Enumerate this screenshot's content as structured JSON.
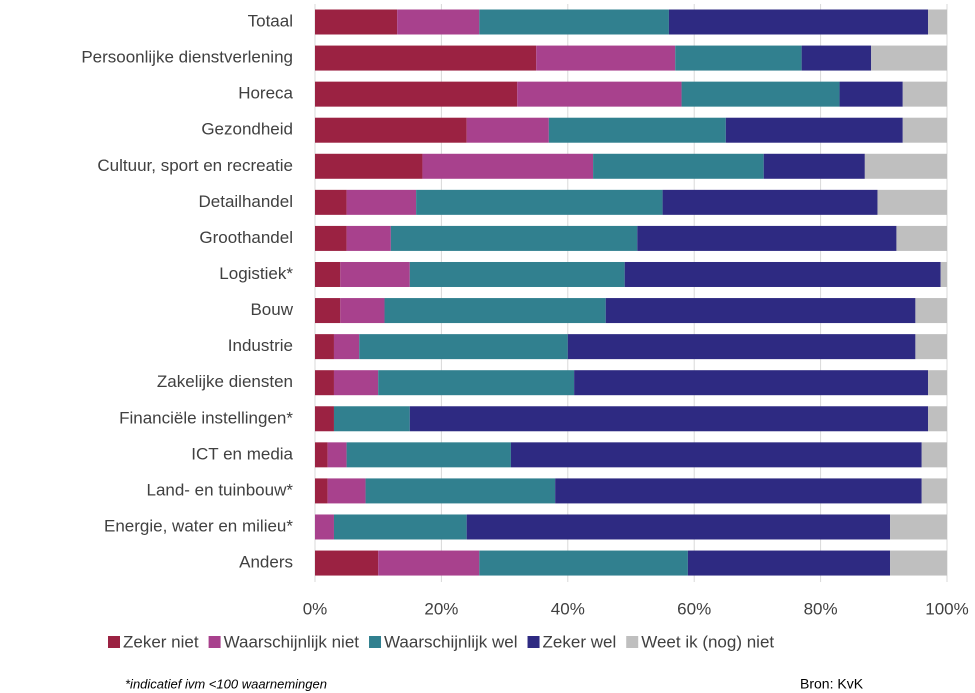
{
  "chart_data": {
    "type": "stacked_barh",
    "categories": [
      "Totaal",
      "Persoonlijke dienstverlening",
      "Horeca",
      "Gezondheid",
      "Cultuur, sport en recreatie",
      "Detailhandel",
      "Groothandel",
      "Logistiek*",
      "Bouw",
      "Industrie",
      "Zakelijke diensten",
      "Financiële instellingen*",
      "ICT en media",
      "Land- en tuinbouw*",
      "Energie, water en milieu*",
      "Anders"
    ],
    "series": [
      {
        "name": "Zeker niet",
        "color": "#9b2242",
        "values": [
          13,
          35,
          32,
          24,
          17,
          5,
          5,
          4,
          4,
          3,
          3,
          3,
          2,
          2,
          0,
          10
        ]
      },
      {
        "name": "Waarschijnlijk niet",
        "color": "#a8418d",
        "values": [
          13,
          22,
          26,
          13,
          27,
          11,
          7,
          11,
          7,
          4,
          7,
          0,
          3,
          6,
          3,
          16
        ]
      },
      {
        "name": "Waarschijnlijk wel",
        "color": "#31808f",
        "values": [
          30,
          20,
          25,
          28,
          27,
          39,
          39,
          34,
          35,
          33,
          31,
          12,
          26,
          30,
          21,
          33
        ]
      },
      {
        "name": "Zeker wel",
        "color": "#2e2a82",
        "values": [
          41,
          11,
          10,
          28,
          16,
          34,
          41,
          50,
          49,
          55,
          56,
          82,
          65,
          58,
          67,
          32
        ]
      },
      {
        "name": "Weet ik (nog) niet",
        "color": "#bfbfbf",
        "values": [
          3,
          12,
          7,
          7,
          13,
          11,
          8,
          1,
          5,
          5,
          3,
          3,
          4,
          4,
          9,
          9
        ]
      }
    ],
    "xlim": [
      0,
      100
    ],
    "xticks": [
      {
        "value": 0,
        "label": "0%"
      },
      {
        "value": 20,
        "label": "20%"
      },
      {
        "value": 40,
        "label": "40%"
      },
      {
        "value": 60,
        "label": "60%"
      },
      {
        "value": 80,
        "label": "80%"
      },
      {
        "value": 100,
        "label": "100%"
      }
    ],
    "grid": true,
    "footnote": "*indicatief ivm <100 waarnemingen",
    "source": "Bron: KvK"
  }
}
